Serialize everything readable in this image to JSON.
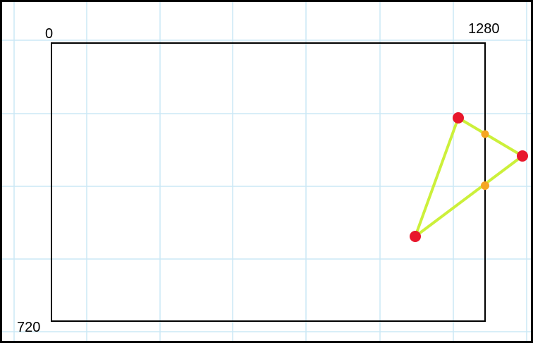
{
  "screen_bounds": {
    "origin_label": "0",
    "width_label": "1280",
    "height_label": "720",
    "border_color": "#000000"
  },
  "grid": {
    "line_color": "#cce8f6",
    "background_color": "#ffffff"
  },
  "triangle": {
    "edge_color": "#ccf03a",
    "vertex_color": "#e8172c",
    "intersection_color": "#f5a623",
    "vertex_count": 3,
    "intersection_count": 2
  }
}
